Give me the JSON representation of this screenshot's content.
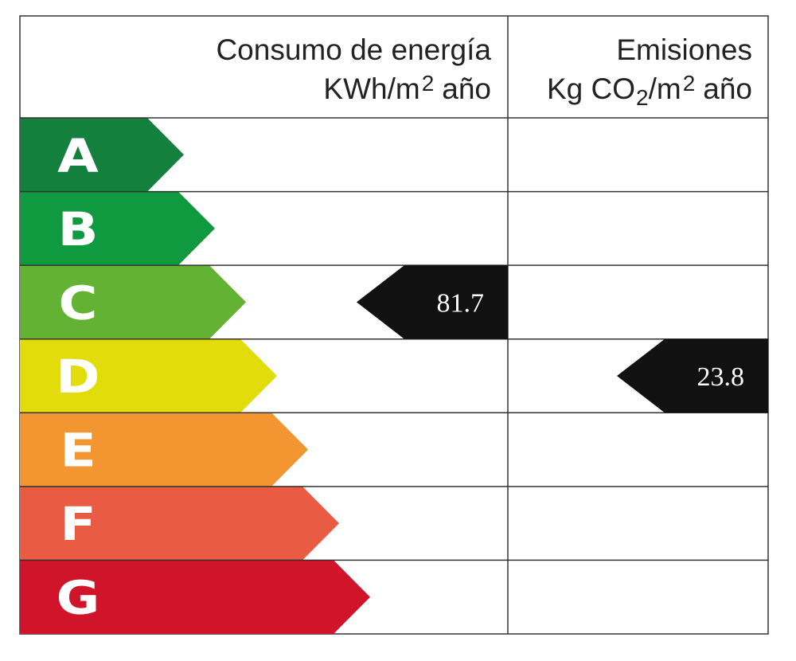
{
  "header": {
    "energy": {
      "title": "Consumo de energía",
      "unit": [
        "KWh/m",
        "2",
        "año"
      ]
    },
    "emissions": {
      "title": "Emisiones",
      "unit": [
        "Kg CO",
        "2",
        "/m",
        "2",
        "año"
      ]
    }
  },
  "rows": [
    {
      "letter": "A",
      "color": "#13803d"
    },
    {
      "letter": "B",
      "color": "#109a3f"
    },
    {
      "letter": "C",
      "color": "#63b234"
    },
    {
      "letter": "D",
      "color": "#e2dc0a"
    },
    {
      "letter": "E",
      "color": "#f39530"
    },
    {
      "letter": "F",
      "color": "#e95b43"
    },
    {
      "letter": "G",
      "color": "#d01429"
    }
  ],
  "ratings": {
    "energy": {
      "value": 81.7,
      "class": "C"
    },
    "emissions": {
      "value": 23.8,
      "class": "D"
    }
  }
}
